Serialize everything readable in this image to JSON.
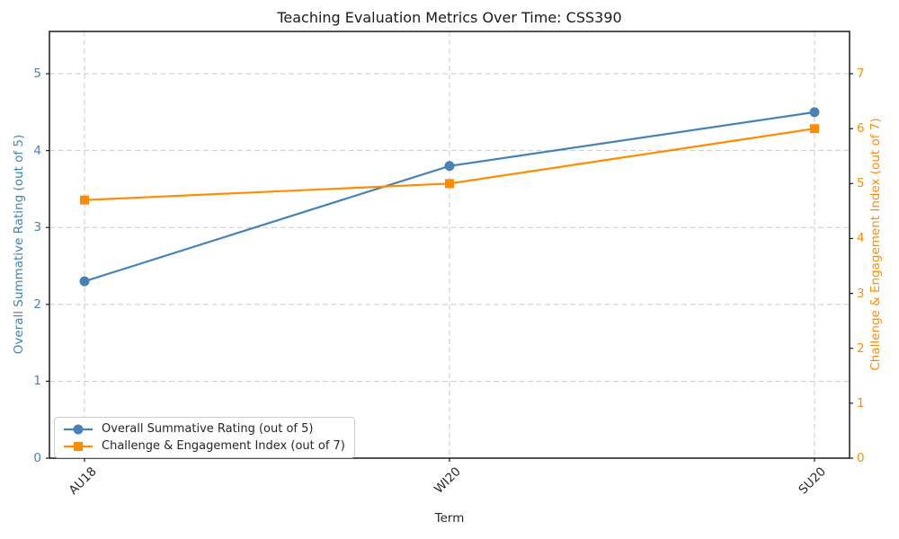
{
  "chart_data": {
    "type": "line",
    "title": "Teaching Evaluation Metrics Over Time: CSS390",
    "xlabel": "Term",
    "ylabel_left": "Overall Summative Rating (out of 5)",
    "ylabel_right": "Challenge & Engagement Index (out of 7)",
    "categories": [
      "AU18",
      "WI20",
      "SU20"
    ],
    "series": [
      {
        "name": "Overall Summative Rating (out of 5)",
        "axis": "left",
        "marker": "circle",
        "color": "#4682B4",
        "values": [
          2.3,
          3.8,
          4.5
        ]
      },
      {
        "name": "Challenge & Engagement Index (out of 7)",
        "axis": "right",
        "marker": "square",
        "color": "#FF8C00",
        "values": [
          4.7,
          5.0,
          6.0
        ]
      }
    ],
    "left_axis": {
      "ticks": [
        0,
        1,
        2,
        3,
        4,
        5
      ],
      "max": 5.55,
      "color": "#4682B4"
    },
    "right_axis": {
      "ticks": [
        0,
        1,
        2,
        3,
        4,
        5,
        6,
        7
      ],
      "max": 7.77,
      "color": "#FF8C00"
    },
    "grid": {
      "on": true,
      "style": "dashed",
      "color": "#c9c9c9"
    },
    "legend": {
      "position": "lower left"
    }
  }
}
